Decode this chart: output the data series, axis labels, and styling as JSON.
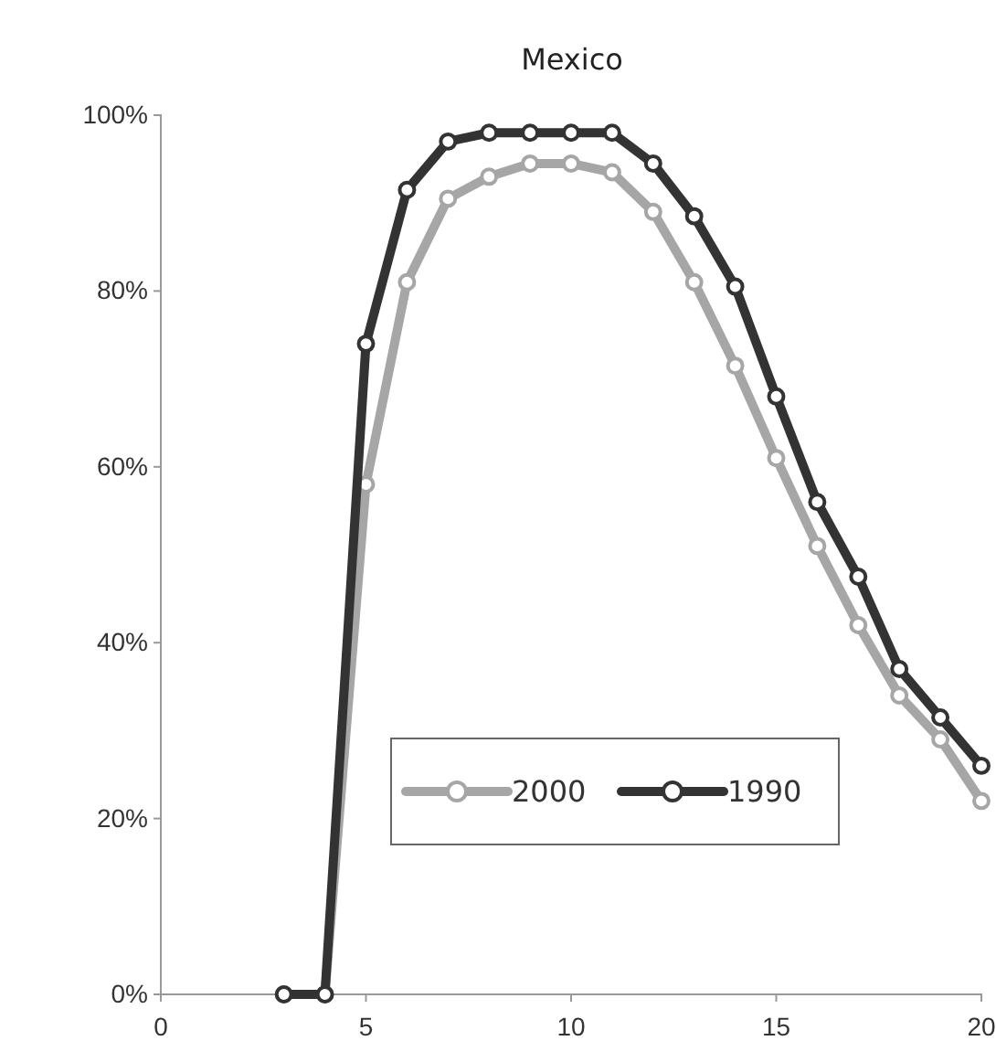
{
  "chart_data": {
    "type": "line",
    "title": "Mexico",
    "x": [
      3,
      4,
      5,
      6,
      7,
      8,
      9,
      10,
      11,
      12,
      13,
      14,
      15,
      16,
      17,
      18,
      19,
      20
    ],
    "series": [
      {
        "name": "2000",
        "color": "#a6a6a6",
        "values": [
          0,
          0,
          58,
          81,
          90.5,
          93,
          94.5,
          94.5,
          93.5,
          89,
          81,
          71.5,
          61,
          51,
          42,
          34,
          29,
          22
        ]
      },
      {
        "name": "1990",
        "color": "#333333",
        "values": [
          0,
          0,
          74,
          91.5,
          97,
          98,
          98,
          98,
          98,
          94.5,
          88.5,
          80.5,
          68,
          56,
          47.5,
          37,
          31.5,
          26
        ]
      }
    ],
    "xlim": [
      0,
      20
    ],
    "xticks": [
      0,
      5,
      10,
      15,
      20
    ],
    "ylim": [
      0,
      100
    ],
    "yticks": [
      {
        "value": 0,
        "label": "0%"
      },
      {
        "value": 20,
        "label": "20%"
      },
      {
        "value": 40,
        "label": "40%"
      },
      {
        "value": 60,
        "label": "60%"
      },
      {
        "value": 80,
        "label": "80%"
      },
      {
        "value": 100,
        "label": "100%"
      }
    ],
    "marker": "circle",
    "line_style": "solid",
    "legend": "bottom right",
    "grid": false
  }
}
